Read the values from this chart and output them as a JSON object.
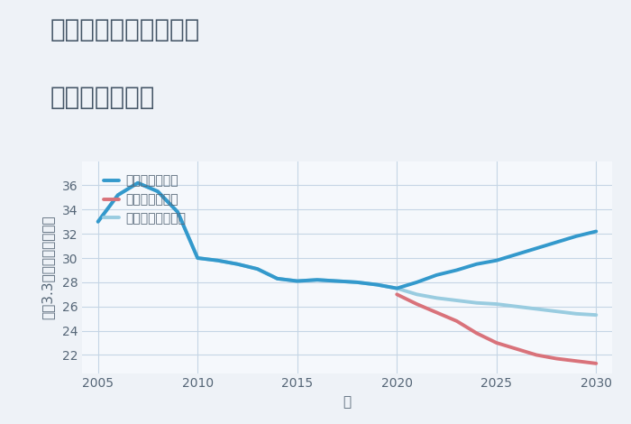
{
  "title_line1": "岐阜県大垣市米野町の",
  "title_line2": "土地の価格推移",
  "xlabel": "年",
  "ylabel": "平（3.3㎡）単価（万円）",
  "background_color": "#eef2f7",
  "plot_bg_color": "#f5f8fc",
  "grid_color": "#c5d5e5",
  "good_scenario": {
    "label": "グッドシナリオ",
    "color": "#3399cc",
    "linewidth": 2.8,
    "x": [
      2005,
      2006,
      2007,
      2008,
      2009,
      2010,
      2011,
      2012,
      2013,
      2014,
      2015,
      2016,
      2017,
      2018,
      2019,
      2020,
      2021,
      2022,
      2023,
      2024,
      2025,
      2026,
      2027,
      2028,
      2029,
      2030
    ],
    "y": [
      33.0,
      35.2,
      36.2,
      35.5,
      33.8,
      30.0,
      29.8,
      29.5,
      29.1,
      28.3,
      28.1,
      28.2,
      28.1,
      28.0,
      27.8,
      27.5,
      28.0,
      28.6,
      29.0,
      29.5,
      29.8,
      30.3,
      30.8,
      31.3,
      31.8,
      32.2
    ]
  },
  "bad_scenario": {
    "label": "バッドシナリオ",
    "color": "#d9727a",
    "linewidth": 2.8,
    "x": [
      2020,
      2021,
      2022,
      2023,
      2024,
      2025,
      2026,
      2027,
      2028,
      2029,
      2030
    ],
    "y": [
      27.0,
      26.2,
      25.5,
      24.8,
      23.8,
      23.0,
      22.5,
      22.0,
      21.7,
      21.5,
      21.3
    ]
  },
  "normal_scenario": {
    "label": "ノーマルシナリオ",
    "color": "#99cce0",
    "linewidth": 2.8,
    "x": [
      2005,
      2006,
      2007,
      2008,
      2009,
      2010,
      2011,
      2012,
      2013,
      2014,
      2015,
      2016,
      2017,
      2018,
      2019,
      2020,
      2021,
      2022,
      2023,
      2024,
      2025,
      2026,
      2027,
      2028,
      2029,
      2030
    ],
    "y": [
      33.0,
      35.2,
      36.2,
      35.5,
      33.8,
      30.0,
      29.8,
      29.5,
      29.1,
      28.3,
      28.1,
      28.2,
      28.1,
      28.0,
      27.8,
      27.5,
      27.0,
      26.7,
      26.5,
      26.3,
      26.2,
      26.0,
      25.8,
      25.6,
      25.4,
      25.3
    ]
  },
  "ylim": [
    20.5,
    38
  ],
  "yticks": [
    22,
    24,
    26,
    28,
    30,
    32,
    34,
    36
  ],
  "xlim": [
    2004.2,
    2030.8
  ],
  "xticks": [
    2005,
    2010,
    2015,
    2020,
    2025,
    2030
  ],
  "title_fontsize": 20,
  "axis_fontsize": 11,
  "tick_fontsize": 10,
  "legend_fontsize": 10,
  "title_color": "#445566",
  "tick_color": "#556677",
  "label_color": "#556677"
}
